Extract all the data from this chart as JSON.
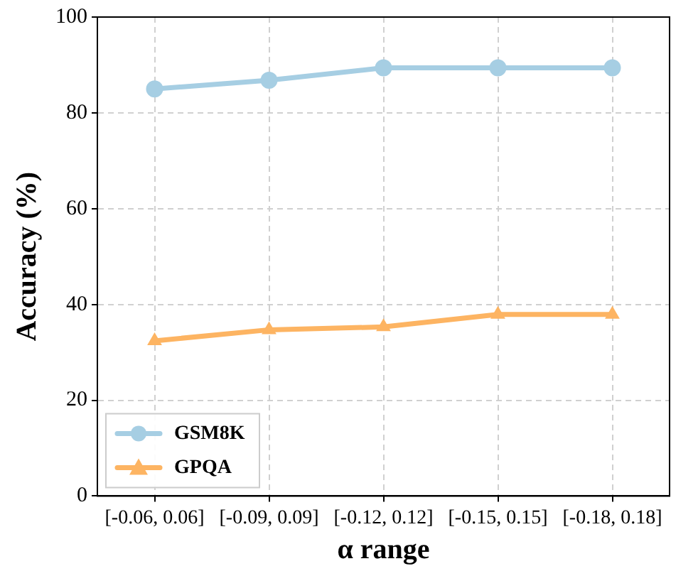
{
  "chart_data": {
    "type": "line",
    "xlabel": "α range",
    "ylabel": "Accuracy (%)",
    "categories": [
      "[-0.06, 0.06]",
      "[-0.09, 0.09]",
      "[-0.12, 0.12]",
      "[-0.15, 0.15]",
      "[-0.18, 0.18]"
    ],
    "series": [
      {
        "name": "GSM8K",
        "color": "#a6cee3",
        "marker": "circle",
        "values": [
          85.0,
          86.8,
          89.4,
          89.4,
          89.4
        ]
      },
      {
        "name": "GPQA",
        "color": "#fdb462",
        "marker": "triangle",
        "values": [
          32.4,
          34.7,
          35.3,
          37.9,
          37.9
        ]
      }
    ],
    "ylim": [
      0,
      100
    ],
    "yticks": [
      0,
      20,
      40,
      60,
      80,
      100
    ],
    "grid": true,
    "legend": "bottom left",
    "line_style": "solid"
  }
}
